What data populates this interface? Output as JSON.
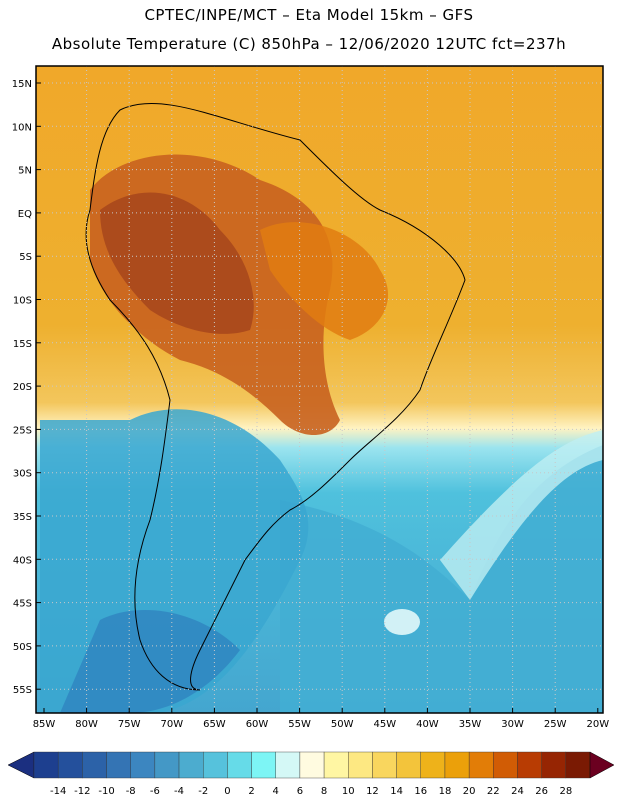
{
  "header": {
    "line1": "CPTEC/INPE/MCT –  Eta Model 15km – GFS",
    "line2": "Absolute Temperature (C) 850hPa – 12/06/2020 12UTC fct=237h"
  },
  "map": {
    "lon_labels": [
      "85W",
      "80W",
      "75W",
      "70W",
      "65W",
      "60W",
      "55W",
      "50W",
      "45W",
      "40W",
      "35W",
      "30W",
      "25W",
      "20W"
    ],
    "lat_labels": [
      "15N",
      "10N",
      "5N",
      "EQ",
      "5S",
      "10S",
      "15S",
      "20S",
      "25S",
      "30S",
      "35S",
      "40S",
      "45S",
      "50S",
      "55S"
    ]
  },
  "colorbar": {
    "labels": [
      "-14",
      "-12",
      "-10",
      "-8",
      "-6",
      "-4",
      "-2",
      "0",
      "2",
      "4",
      "6",
      "8",
      "10",
      "12",
      "14",
      "16",
      "18",
      "20",
      "22",
      "24",
      "26",
      "28"
    ],
    "colors": [
      "#1d3f8f",
      "#24509c",
      "#2c62a8",
      "#3474b4",
      "#3c86c0",
      "#4498c6",
      "#4caccf",
      "#56c2dc",
      "#66dbe8",
      "#7df5f5",
      "#d4f8f6",
      "#fffbe0",
      "#fff6a3",
      "#fde882",
      "#f9d65e",
      "#f3c43b",
      "#eeb21a",
      "#eba00a",
      "#e27d07",
      "#d15c05",
      "#b83c03",
      "#962503",
      "#7a1a03"
    ],
    "low_arrow_color": "#1b2f80",
    "high_arrow_color": "#6b0020"
  },
  "colors": {
    "warm_core": "#b05322",
    "ocean_warm": "#f0ab2c",
    "ocean_cold": "#49b6d2"
  }
}
